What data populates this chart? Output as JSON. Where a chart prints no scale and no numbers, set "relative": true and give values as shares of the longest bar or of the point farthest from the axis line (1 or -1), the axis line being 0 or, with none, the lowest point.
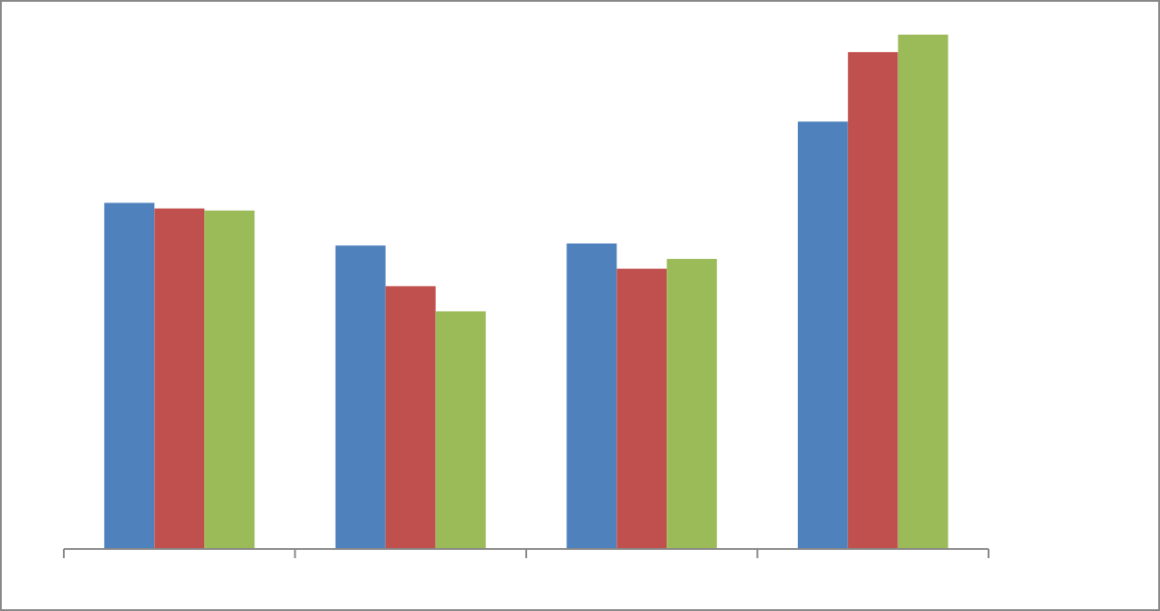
{
  "chart_data": {
    "type": "bar",
    "relative": true,
    "categories": [
      null,
      null,
      null,
      null
    ],
    "series": [
      {
        "color": "#4f81bd",
        "values": [
          0.673,
          0.59,
          0.594,
          0.831
        ]
      },
      {
        "color": "#c0504d",
        "values": [
          0.662,
          0.511,
          0.545,
          0.966
        ]
      },
      {
        "color": "#9bbb59",
        "values": [
          0.658,
          0.462,
          0.564,
          1
        ]
      }
    ]
  }
}
